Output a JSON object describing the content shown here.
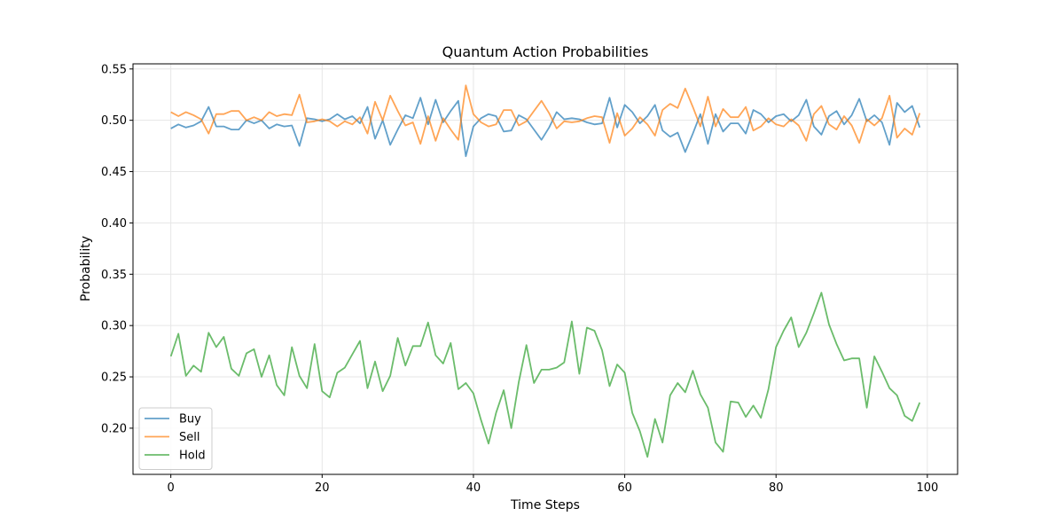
{
  "chart_data": {
    "type": "line",
    "title": "Quantum Action Probabilities",
    "xlabel": "Time Steps",
    "ylabel": "Probability",
    "xlim": [
      -5,
      104
    ],
    "ylim": [
      0.155,
      0.555
    ],
    "xticks": [
      0,
      20,
      40,
      60,
      80,
      100
    ],
    "yticks": [
      0.2,
      0.25,
      0.3,
      0.35,
      0.4,
      0.45,
      0.5,
      0.55
    ],
    "grid": true,
    "legend_position": "lower-left",
    "x": [
      0,
      1,
      2,
      3,
      4,
      5,
      6,
      7,
      8,
      9,
      10,
      11,
      12,
      13,
      14,
      15,
      16,
      17,
      18,
      19,
      20,
      21,
      22,
      23,
      24,
      25,
      26,
      27,
      28,
      29,
      30,
      31,
      32,
      33,
      34,
      35,
      36,
      37,
      38,
      39,
      40,
      41,
      42,
      43,
      44,
      45,
      46,
      47,
      48,
      49,
      50,
      51,
      52,
      53,
      54,
      55,
      56,
      57,
      58,
      59,
      60,
      61,
      62,
      63,
      64,
      65,
      66,
      67,
      68,
      69,
      70,
      71,
      72,
      73,
      74,
      75,
      76,
      77,
      78,
      79,
      80,
      81,
      82,
      83,
      84,
      85,
      86,
      87,
      88,
      89,
      90,
      91,
      92,
      93,
      94,
      95,
      96,
      97,
      98,
      99
    ],
    "series": [
      {
        "name": "Buy",
        "color": "#1f77b4",
        "values": [
          0.492,
          0.496,
          0.493,
          0.495,
          0.499,
          0.513,
          0.494,
          0.494,
          0.491,
          0.491,
          0.5,
          0.497,
          0.5,
          0.492,
          0.496,
          0.494,
          0.495,
          0.475,
          0.502,
          0.501,
          0.499,
          0.501,
          0.506,
          0.501,
          0.504,
          0.497,
          0.513,
          0.482,
          0.5,
          0.476,
          0.491,
          0.505,
          0.502,
          0.522,
          0.496,
          0.52,
          0.498,
          0.509,
          0.519,
          0.465,
          0.494,
          0.502,
          0.506,
          0.504,
          0.489,
          0.49,
          0.505,
          0.501,
          0.491,
          0.481,
          0.493,
          0.508,
          0.501,
          0.502,
          0.501,
          0.498,
          0.496,
          0.497,
          0.522,
          0.493,
          0.515,
          0.508,
          0.497,
          0.504,
          0.515,
          0.49,
          0.484,
          0.488,
          0.469,
          0.487,
          0.506,
          0.477,
          0.506,
          0.489,
          0.497,
          0.497,
          0.487,
          0.51,
          0.506,
          0.498,
          0.504,
          0.506,
          0.499,
          0.505,
          0.52,
          0.494,
          0.486,
          0.504,
          0.509,
          0.496,
          0.505,
          0.521,
          0.499,
          0.505,
          0.498,
          0.476,
          0.517,
          0.508,
          0.514,
          0.493
        ]
      },
      {
        "name": "Sell",
        "color": "#ff7f0e",
        "values": [
          0.508,
          0.504,
          0.508,
          0.505,
          0.501,
          0.487,
          0.506,
          0.506,
          0.509,
          0.509,
          0.5,
          0.503,
          0.5,
          0.508,
          0.504,
          0.506,
          0.505,
          0.525,
          0.498,
          0.499,
          0.501,
          0.499,
          0.494,
          0.499,
          0.496,
          0.503,
          0.487,
          0.518,
          0.5,
          0.524,
          0.509,
          0.495,
          0.498,
          0.477,
          0.504,
          0.48,
          0.502,
          0.491,
          0.481,
          0.534,
          0.506,
          0.498,
          0.494,
          0.496,
          0.51,
          0.51,
          0.495,
          0.499,
          0.509,
          0.519,
          0.507,
          0.492,
          0.499,
          0.498,
          0.499,
          0.502,
          0.504,
          0.503,
          0.478,
          0.507,
          0.485,
          0.492,
          0.503,
          0.496,
          0.485,
          0.51,
          0.516,
          0.512,
          0.531,
          0.513,
          0.494,
          0.523,
          0.494,
          0.511,
          0.503,
          0.503,
          0.513,
          0.49,
          0.494,
          0.502,
          0.496,
          0.494,
          0.501,
          0.495,
          0.48,
          0.506,
          0.514,
          0.496,
          0.491,
          0.504,
          0.495,
          0.478,
          0.501,
          0.495,
          0.502,
          0.524,
          0.483,
          0.492,
          0.486,
          0.507
        ]
      },
      {
        "name": "Hold",
        "color": "#2ca02c",
        "values": [
          0.27,
          0.292,
          0.251,
          0.261,
          0.255,
          0.293,
          0.279,
          0.289,
          0.258,
          0.251,
          0.273,
          0.277,
          0.25,
          0.271,
          0.242,
          0.232,
          0.279,
          0.251,
          0.239,
          0.282,
          0.236,
          0.23,
          0.254,
          0.259,
          0.272,
          0.285,
          0.239,
          0.265,
          0.236,
          0.251,
          0.288,
          0.261,
          0.28,
          0.28,
          0.303,
          0.271,
          0.263,
          0.283,
          0.238,
          0.244,
          0.234,
          0.208,
          0.185,
          0.215,
          0.237,
          0.2,
          0.245,
          0.281,
          0.244,
          0.257,
          0.257,
          0.259,
          0.264,
          0.304,
          0.253,
          0.298,
          0.295,
          0.276,
          0.241,
          0.262,
          0.254,
          0.215,
          0.197,
          0.172,
          0.209,
          0.186,
          0.232,
          0.244,
          0.235,
          0.256,
          0.233,
          0.22,
          0.186,
          0.177,
          0.226,
          0.225,
          0.211,
          0.222,
          0.21,
          0.238,
          0.279,
          0.295,
          0.308,
          0.279,
          0.293,
          0.312,
          0.332,
          0.301,
          0.282,
          0.266,
          0.268,
          0.268,
          0.22,
          0.27,
          0.255,
          0.239,
          0.232,
          0.212,
          0.207,
          0.225
        ]
      }
    ]
  }
}
